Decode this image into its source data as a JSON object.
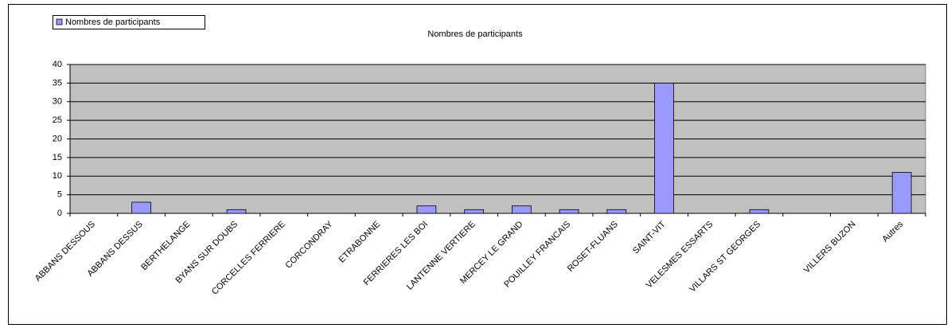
{
  "chart_data": {
    "type": "bar",
    "title": "Nombres de participants",
    "categories": [
      "ABBANS DESSOUS",
      "ABBANS DESSUS",
      "BERTHELANGE",
      "BYANS SUR DOUBS",
      "CORCELLES FERRIERE",
      "CORCONDRAY",
      "ETRABONNE",
      "FERRIERES LES BOI",
      "LANTENNE VERTIERE",
      "MERCEY LE GRAND",
      "POUILLEY FRANCAIS",
      "ROSET-FLUANS",
      "SAINT-VIT",
      "VELESMES ESSARTS",
      "VILLARS ST GEORGES",
      null,
      "VILLERS BUZON",
      "Autres"
    ],
    "series": [
      {
        "name": "Nombres de participants",
        "color": "#9999ff",
        "values": [
          0,
          3,
          0,
          1,
          0,
          0,
          0,
          2,
          1,
          2,
          1,
          1,
          35,
          0,
          1,
          0,
          0,
          11
        ]
      }
    ],
    "ylim": [
      0,
      40
    ],
    "yticks": [
      0,
      5,
      10,
      15,
      20,
      25,
      30,
      35,
      40
    ],
    "grid": true,
    "legend": "top-left"
  }
}
